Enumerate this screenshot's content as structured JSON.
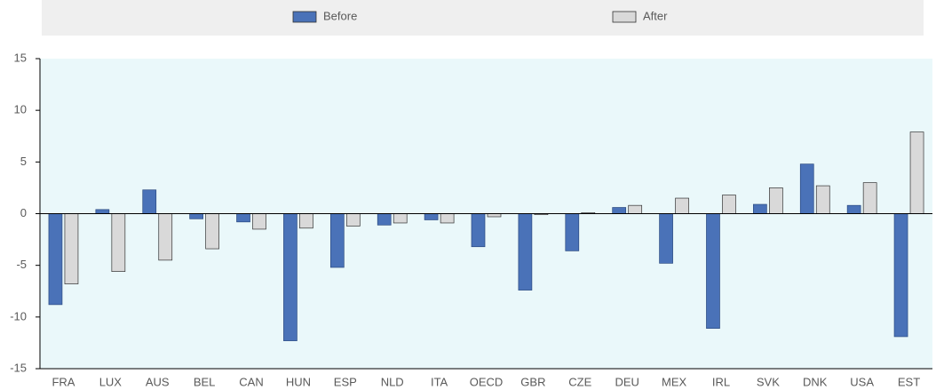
{
  "chart_data": {
    "type": "bar",
    "categories": [
      "FRA",
      "LUX",
      "AUS",
      "BEL",
      "CAN",
      "HUN",
      "ESP",
      "NLD",
      "ITA",
      "OECD",
      "GBR",
      "CZE",
      "DEU",
      "MEX",
      "IRL",
      "SVK",
      "DNK",
      "USA",
      "EST"
    ],
    "series": [
      {
        "name": "Before",
        "color": "#4a72b8",
        "values": [
          -8.8,
          0.4,
          2.3,
          -0.5,
          -0.8,
          -12.3,
          -5.2,
          -1.1,
          -0.6,
          -3.2,
          -7.4,
          -3.6,
          0.6,
          -4.8,
          -11.1,
          0.9,
          4.8,
          0.8,
          -11.9
        ]
      },
      {
        "name": "After",
        "color": "#d9d9d9",
        "values": [
          -6.8,
          -5.6,
          -4.5,
          -3.4,
          -1.5,
          -1.4,
          -1.2,
          -0.9,
          -0.9,
          -0.3,
          -0.1,
          0.1,
          0.8,
          1.5,
          1.8,
          2.5,
          2.7,
          3.0,
          7.9
        ]
      }
    ],
    "ylim": [
      -15,
      15
    ],
    "yticks": [
      -15,
      -10,
      -5,
      0,
      5,
      10,
      15
    ],
    "grid": false,
    "legend": "top"
  }
}
